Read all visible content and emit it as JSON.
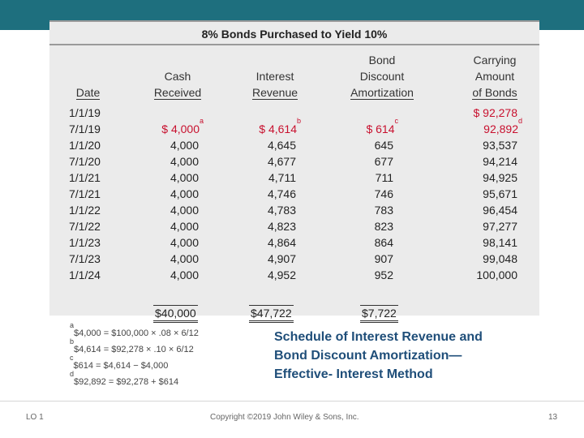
{
  "header": {
    "title": "8% Bonds Purchased to Yield 10%"
  },
  "columns": {
    "date": [
      "Date"
    ],
    "cash": [
      "Cash",
      "Received"
    ],
    "interest": [
      "Interest",
      "Revenue"
    ],
    "amort": [
      "Bond",
      "Discount",
      "Amortization"
    ],
    "carrying": [
      "Carrying",
      "Amount",
      "of Bonds"
    ]
  },
  "rows": [
    {
      "date": "1/1/19",
      "cash": "",
      "interest": "",
      "amort": "",
      "carrying": "$ 92,278"
    },
    {
      "date": "7/1/19",
      "cash": "$ 4,000",
      "cash_note": "a",
      "interest": "$ 4,614",
      "interest_note": "b",
      "amort": "$ 614",
      "amort_note": "c",
      "carrying": "92,892",
      "carrying_note": "d"
    },
    {
      "date": "1/1/20",
      "cash": "4,000",
      "interest": "4,645",
      "amort": "645",
      "carrying": "93,537"
    },
    {
      "date": "7/1/20",
      "cash": "4,000",
      "interest": "4,677",
      "amort": "677",
      "carrying": "94,214"
    },
    {
      "date": "1/1/21",
      "cash": "4,000",
      "interest": "4,711",
      "amort": "711",
      "carrying": "94,925"
    },
    {
      "date": "7/1/21",
      "cash": "4,000",
      "interest": "4,746",
      "amort": "746",
      "carrying": "95,671"
    },
    {
      "date": "1/1/22",
      "cash": "4,000",
      "interest": "4,783",
      "amort": "783",
      "carrying": "96,454"
    },
    {
      "date": "7/1/22",
      "cash": "4,000",
      "interest": "4,823",
      "amort": "823",
      "carrying": "97,277"
    },
    {
      "date": "1/1/23",
      "cash": "4,000",
      "interest": "4,864",
      "amort": "864",
      "carrying": "98,141"
    },
    {
      "date": "7/1/23",
      "cash": "4,000",
      "interest": "4,907",
      "amort": "907",
      "carrying": "99,048"
    },
    {
      "date": "1/1/24",
      "cash": "4,000",
      "interest": "4,952",
      "amort": "952",
      "carrying": "100,000"
    }
  ],
  "totals": {
    "cash": "$40,000",
    "interest": "$47,722",
    "amort": "$7,722"
  },
  "footnotes": [
    {
      "mark": "a",
      "text": "$4,000 = $100,000 × .08 × 6/12"
    },
    {
      "mark": "b",
      "text": "$4,614 = $92,278 × .10 × 6/12"
    },
    {
      "mark": "c",
      "text": "$614 = $4,614 − $4,000"
    },
    {
      "mark": "d",
      "text": "$92,892 = $92,278 + $614"
    }
  ],
  "caption": [
    "Schedule of Interest Revenue and",
    "Bond Discount Amortization—",
    "Effective- Interest Method"
  ],
  "footer": {
    "lo": "LO 1",
    "copyright": "Copyright ©2019 John Wiley & Sons, Inc.",
    "page": "13"
  },
  "colors": {
    "topbar": "#1e6f7e",
    "red": "#c8102e",
    "caption": "#1f4e79"
  }
}
